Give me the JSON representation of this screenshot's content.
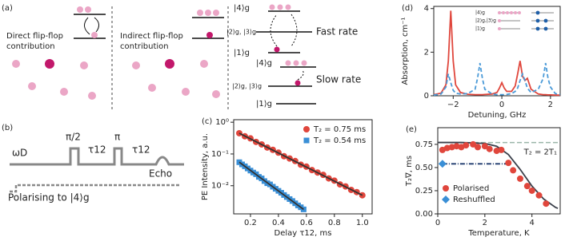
{
  "panel_a": {
    "label": "(a)",
    "direct": [
      "Direct flip-flop",
      "contribution"
    ],
    "indirect": [
      "Indirect flip-flop",
      "contribution"
    ],
    "fast": {
      "levels": [
        "|4⟩g",
        "|2⟩g, |3⟩g",
        "|1⟩g"
      ],
      "text": "Fast rate"
    },
    "slow": {
      "levels": [
        "|4⟩g",
        "|2⟩g, |3⟩g",
        "|1⟩g"
      ],
      "text": "Slow rate"
    }
  },
  "panel_b": {
    "label": "(b)",
    "drive": "ωD",
    "pulse1": "π/2",
    "pulse2": "π",
    "delay1": "τ12",
    "delay2": "τ12",
    "echo": "Echo",
    "polarising": "Polarising to |4⟩g"
  },
  "chart_data": [
    {
      "type": "scatter",
      "title": "(c)",
      "xlabel": "Delay τ12, ms",
      "ylabel": "PE Intensity, a.u.",
      "log_y": true,
      "xlim": [
        0.08,
        1.07
      ],
      "ylim": [
        0.0013,
        1.2
      ],
      "xticks": [
        0.2,
        0.4,
        0.6,
        0.8,
        {
          "value": 1.0,
          "label": "1.0"
        }
      ],
      "yticks": [
        {
          "value": 1,
          "label": "10⁰"
        },
        {
          "value": 0.1,
          "label": "10⁻¹"
        },
        {
          "value": 0.01,
          "label": "10⁻²"
        }
      ],
      "legend": "upper right",
      "series": [
        {
          "name": "T₂ = 0.75 ms",
          "color": "#e0463c",
          "marker": "circle",
          "x": [
            0.12,
            0.16,
            0.2,
            0.24,
            0.28,
            0.32,
            0.36,
            0.4,
            0.44,
            0.48,
            0.52,
            0.56,
            0.6,
            0.64,
            0.68,
            0.72,
            0.76,
            0.8,
            0.84,
            0.88,
            0.92,
            0.96,
            1.0
          ],
          "values": [
            0.45,
            0.36,
            0.31,
            0.24,
            0.2,
            0.16,
            0.135,
            0.11,
            0.085,
            0.072,
            0.06,
            0.046,
            0.04,
            0.031,
            0.026,
            0.022,
            0.017,
            0.0145,
            0.011,
            0.0095,
            0.0074,
            0.0063,
            0.005
          ]
        },
        {
          "name": "T₂ = 0.54 ms",
          "color": "#3a8fd6",
          "marker": "square",
          "x": [
            0.12,
            0.14,
            0.16,
            0.18,
            0.2,
            0.22,
            0.24,
            0.26,
            0.28,
            0.3,
            0.32,
            0.34,
            0.36,
            0.38,
            0.4,
            0.42,
            0.44,
            0.46,
            0.48,
            0.5,
            0.52,
            0.54,
            0.56,
            0.58
          ],
          "values": [
            0.055,
            0.047,
            0.041,
            0.035,
            0.03,
            0.026,
            0.023,
            0.019,
            0.017,
            0.014,
            0.012,
            0.011,
            0.0093,
            0.008,
            0.0069,
            0.006,
            0.0051,
            0.0044,
            0.0038,
            0.0033,
            0.0028,
            0.0024,
            0.0021,
            0.0018
          ]
        },
        {
          "color": "#333333",
          "marker": "line",
          "x": [
            0.12,
            1.0
          ],
          "values": [
            0.45,
            0.005
          ]
        },
        {
          "color": "#333333",
          "marker": "line",
          "x": [
            0.12,
            0.58
          ],
          "values": [
            0.055,
            0.0018
          ]
        }
      ]
    },
    {
      "type": "line",
      "title": "(d)",
      "xlabel": "Detuning, GHz",
      "ylabel": "Absorption, cm⁻¹",
      "xlim": [
        -2.8,
        2.4
      ],
      "ylim": [
        0,
        4.1
      ],
      "xticks": [
        {
          "value": -2,
          "label": "−2"
        },
        0,
        2
      ],
      "yticks": [
        0,
        2,
        4
      ],
      "inset_labels": [
        "|4⟩g",
        "|2⟩g,|3⟩g",
        "|1⟩g"
      ],
      "series": [
        {
          "color": "#e0463c",
          "marker": "line",
          "x": [
            -2.8,
            -2.5,
            -2.3,
            -2.2,
            -2.1,
            -2.0,
            -1.9,
            -1.7,
            -1.4,
            -1.1,
            -1.0,
            -0.9,
            -0.8,
            -0.7,
            -0.4,
            -0.2,
            -0.1,
            0,
            0.1,
            0.2,
            0.4,
            0.55,
            0.65,
            0.75,
            0.85,
            0.95,
            1.05,
            1.2,
            1.5,
            1.7,
            1.8,
            1.9,
            2.0,
            2.2,
            2.4
          ],
          "values": [
            0.05,
            0.12,
            0.5,
            1.6,
            3.9,
            1.6,
            0.5,
            0.15,
            0.07,
            0.05,
            0.05,
            0.05,
            0.05,
            0.06,
            0.08,
            0.15,
            0.35,
            0.6,
            0.35,
            0.2,
            0.2,
            0.45,
            1.0,
            1.6,
            0.9,
            0.7,
            0.8,
            0.3,
            0.08,
            0.05,
            0.05,
            0.04,
            0.04,
            0.03,
            0.03
          ]
        },
        {
          "color": "#4a9ad8",
          "marker": "line",
          "dash": "5 3",
          "x": [
            -2.8,
            -2.5,
            -2.3,
            -2.2,
            -2.1,
            -2.0,
            -1.9,
            -1.7,
            -1.4,
            -1.1,
            -1.0,
            -0.9,
            -0.8,
            -0.7,
            -0.4,
            -0.2,
            -0.1,
            0,
            0.1,
            0.2,
            0.4,
            0.55,
            0.65,
            0.75,
            0.85,
            0.95,
            1.05,
            1.2,
            1.5,
            1.7,
            1.8,
            1.9,
            2.0,
            2.2,
            2.4
          ],
          "values": [
            0.03,
            0.08,
            0.4,
            1.0,
            0.6,
            0.25,
            0.12,
            0.08,
            0.1,
            0.3,
            0.8,
            1.5,
            0.8,
            0.3,
            0.08,
            0.05,
            0.05,
            0.05,
            0.05,
            0.06,
            0.1,
            0.2,
            0.35,
            0.7,
            1.0,
            0.7,
            0.35,
            0.15,
            0.3,
            0.8,
            1.5,
            0.8,
            0.4,
            0.1,
            0.05
          ]
        }
      ]
    },
    {
      "type": "scatter",
      "title": "(e)",
      "xlabel": "Temperature, K",
      "ylabel": "T₂∇, ms",
      "xlim": [
        0,
        5.2
      ],
      "ylim": [
        0,
        0.93
      ],
      "xticks": [
        0,
        2,
        4
      ],
      "yticks": [
        {
          "value": 0,
          "label": "0.00"
        },
        0.25,
        {
          "value": 0.5,
          "label": "0.50"
        },
        0.75
      ],
      "legend": "lower left",
      "hlines": [
        {
          "value": 0.77,
          "label": "T₂ = 2T₁",
          "color": "#9bb5a8"
        }
      ],
      "series": [
        {
          "color": "#3a3f4a",
          "marker": "line",
          "x": [
            0,
            1,
            2,
            2.5,
            3,
            3.5,
            4,
            4.5,
            5,
            5.1
          ],
          "values": [
            0.77,
            0.77,
            0.76,
            0.73,
            0.64,
            0.48,
            0.3,
            0.16,
            0.07,
            0.06
          ]
        },
        {
          "color": "#1f3a6e",
          "marker": "line",
          "dash": "6 2 1 2",
          "x": [
            0.2,
            3.1
          ],
          "values": [
            0.54,
            0.54
          ]
        },
        {
          "name": "Polarised",
          "color": "#e0463c",
          "marker": "circle",
          "x": [
            0.2,
            0.4,
            0.6,
            0.8,
            1.0,
            1.2,
            1.5,
            1.7,
            2.0,
            2.2,
            2.5,
            2.7,
            3.0,
            3.2,
            3.5,
            3.8,
            4.0,
            4.3,
            4.6
          ],
          "values": [
            0.69,
            0.71,
            0.72,
            0.73,
            0.72,
            0.74,
            0.75,
            0.72,
            0.73,
            0.7,
            0.68,
            0.69,
            0.55,
            0.47,
            0.38,
            0.3,
            0.25,
            0.2,
            0.11
          ]
        },
        {
          "name": "Reshuffled",
          "color": "#3a8fd6",
          "marker": "diamond",
          "x": [
            0.2
          ],
          "values": [
            0.54
          ]
        }
      ]
    }
  ]
}
